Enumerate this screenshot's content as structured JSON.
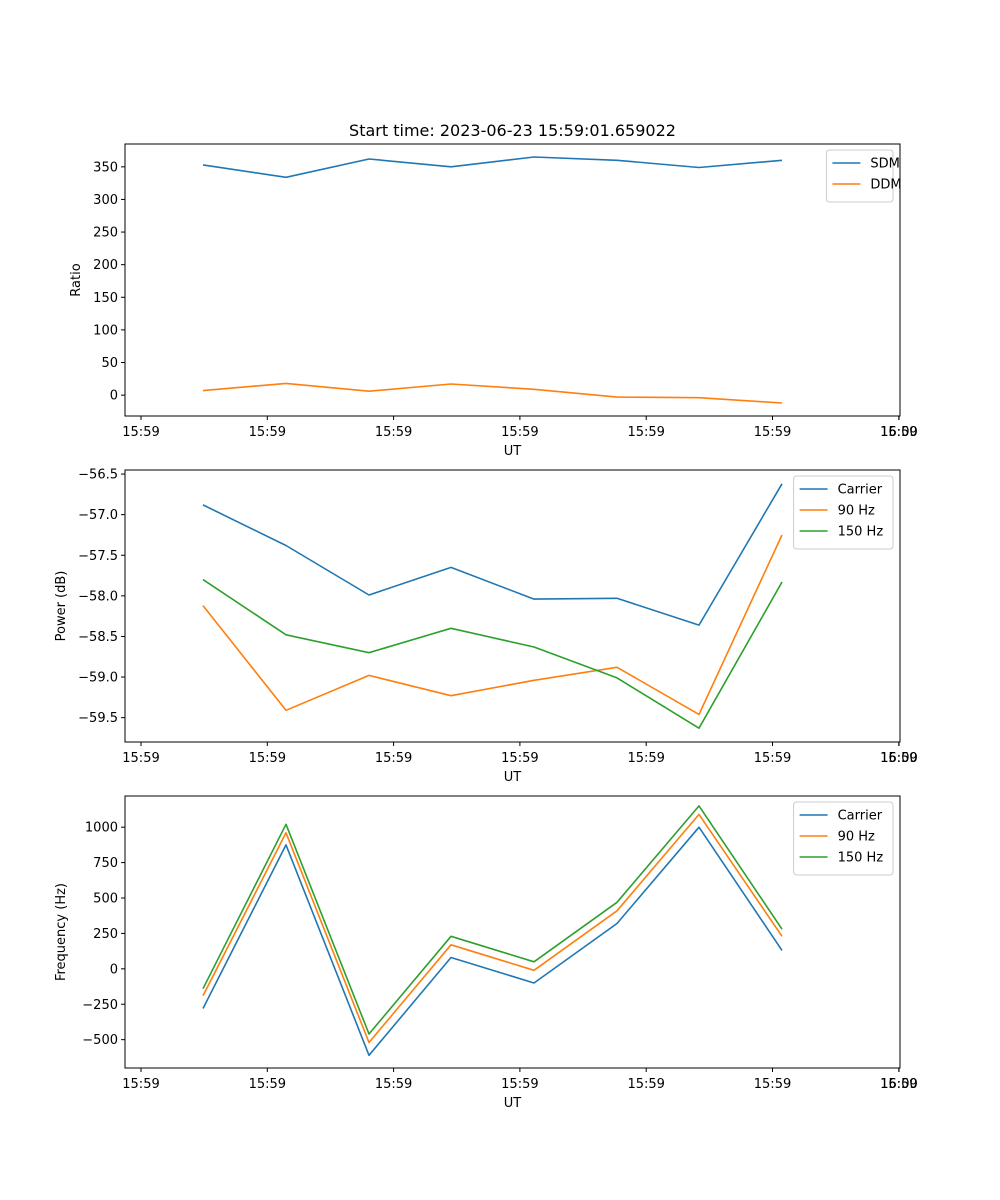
{
  "chart_data": [
    {
      "type": "line",
      "title": "Start time: 2023-06-23 15:59:01.659022",
      "xlabel": "UT",
      "ylabel": "Ratio",
      "x_tick_labels": [
        "15:59",
        "15:59",
        "15:59",
        "15:59",
        "15:59",
        "15:59",
        "15:59",
        "16:00"
      ],
      "y_ticks": [
        0,
        50,
        100,
        150,
        200,
        250,
        300,
        350
      ],
      "y_tick_labels": [
        "0",
        "50",
        "100",
        "150",
        "200",
        "250",
        "300",
        "350"
      ],
      "ylim": [
        -32,
        385
      ],
      "legend_position": "top-right",
      "series": [
        {
          "name": "SDM",
          "color": "#1f77b4",
          "values": [
            353,
            334,
            362,
            350,
            365,
            360,
            349,
            360
          ]
        },
        {
          "name": "DDM",
          "color": "#ff7f0e",
          "values": [
            7,
            18,
            6,
            17,
            9,
            -3,
            -4,
            -12
          ]
        }
      ]
    },
    {
      "type": "line",
      "title": "",
      "xlabel": "UT",
      "ylabel": "Power (dB)",
      "x_tick_labels": [
        "15:59",
        "15:59",
        "15:59",
        "15:59",
        "15:59",
        "15:59",
        "15:59",
        "16:00"
      ],
      "y_ticks": [
        -59.5,
        -59.0,
        -58.5,
        -58.0,
        -57.5,
        -57.0,
        -56.5
      ],
      "y_tick_labels": [
        "−59.5",
        "−59.0",
        "−58.5",
        "−58.0",
        "−57.5",
        "−57.0",
        "−56.5"
      ],
      "ylim": [
        -59.8,
        -56.45
      ],
      "legend_position": "top-right",
      "series": [
        {
          "name": "Carrier",
          "color": "#1f77b4",
          "values": [
            -56.88,
            -57.38,
            -57.99,
            -57.65,
            -58.04,
            -58.03,
            -58.36,
            -56.62
          ]
        },
        {
          "name": "90 Hz",
          "color": "#ff7f0e",
          "values": [
            -58.12,
            -59.41,
            -58.98,
            -59.23,
            -59.04,
            -58.88,
            -59.46,
            -57.25
          ]
        },
        {
          "name": "150 Hz",
          "color": "#2ca02c",
          "values": [
            -57.8,
            -58.48,
            -58.7,
            -58.4,
            -58.63,
            -59.01,
            -59.63,
            -57.83
          ]
        }
      ]
    },
    {
      "type": "line",
      "title": "",
      "xlabel": "UT",
      "ylabel": "Frequency (Hz)",
      "x_tick_labels": [
        "15:59",
        "15:59",
        "15:59",
        "15:59",
        "15:59",
        "15:59",
        "15:59",
        "16:00"
      ],
      "y_ticks": [
        -500,
        -250,
        0,
        250,
        500,
        750,
        1000
      ],
      "y_tick_labels": [
        "−500",
        "−250",
        "0",
        "250",
        "500",
        "750",
        "1000"
      ],
      "ylim": [
        -700,
        1220
      ],
      "legend_position": "top-right",
      "series": [
        {
          "name": "Carrier",
          "color": "#1f77b4",
          "values": [
            -280,
            875,
            -610,
            80,
            -100,
            320,
            1000,
            130
          ]
        },
        {
          "name": "90 Hz",
          "color": "#ff7f0e",
          "values": [
            -190,
            960,
            -520,
            170,
            -10,
            410,
            1090,
            230
          ]
        },
        {
          "name": "150 Hz",
          "color": "#2ca02c",
          "values": [
            -140,
            1020,
            -460,
            230,
            50,
            470,
            1150,
            280
          ]
        }
      ]
    }
  ]
}
